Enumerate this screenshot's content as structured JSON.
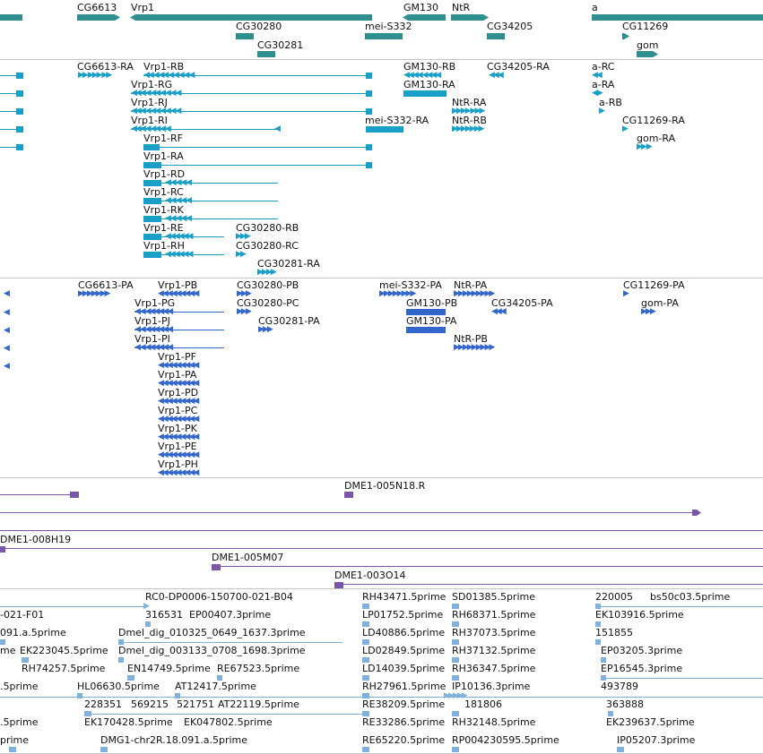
{
  "genes": [
    {
      "name": "CG6613"
    },
    {
      "name": "Vrp1"
    },
    {
      "name": "GM130"
    },
    {
      "name": "NtR"
    },
    {
      "name": "a"
    },
    {
      "name": "CG30280"
    },
    {
      "name": "mei-S332"
    },
    {
      "name": "CG34205"
    },
    {
      "name": "CG11269"
    },
    {
      "name": "CG30281"
    },
    {
      "name": "gom"
    }
  ],
  "transcripts": [
    "CG6613-RA",
    "Vrp1-RB",
    "GM130-RB",
    "CG34205-RA",
    "a-RC",
    "Vrp1-RG",
    "GM130-RA",
    "a-RA",
    "Vrp1-RJ",
    "NtR-RA",
    "a-RB",
    "Vrp1-RI",
    "mei-S332-RA",
    "NtR-RB",
    "CG11269-RA",
    "Vrp1-RF",
    "gom-RA",
    "Vrp1-RA",
    "Vrp1-RD",
    "Vrp1-RC",
    "Vrp1-RK",
    "Vrp1-RE",
    "CG30280-RB",
    "Vrp1-RH",
    "CG30280-RC",
    "CG30281-RA"
  ],
  "peptides": [
    "CG6613-PA",
    "Vrp1-PB",
    "CG30280-PB",
    "mei-S332-PA",
    "NtR-PA",
    "CG11269-PA",
    "Vrp1-PG",
    "CG30280-PC",
    "GM130-PB",
    "CG34205-PA",
    "gom-PA",
    "Vrp1-PJ",
    "CG30281-PA",
    "GM130-PA",
    "Vrp1-PI",
    "NtR-PB",
    "Vrp1-PF",
    "Vrp1-PA",
    "Vrp1-PD",
    "Vrp1-PC",
    "Vrp1-PK",
    "Vrp1-PE",
    "Vrp1-PH"
  ],
  "clones": [
    "DME1-005N18.R",
    "DME1-008H19",
    "DME1-005M07",
    "DME1-003O14"
  ],
  "ests": [
    "RC0-DP0006-150700-021-B04",
    "RH43471.5prime",
    "SD01385.5prime",
    "220005",
    "bs50c03.5prime",
    "-021-F01",
    "316531",
    "EP00407.3prime",
    "LP01752.5prime",
    "RH68371.5prime",
    "EK103916.5prime",
    "091.a.5prime",
    "Dmel_dig_010325_0649_1637.3prime",
    "LD40886.5prime",
    "RH37073.5prime",
    "151855",
    "me",
    "EK223045.5prime",
    "Dmel_dig_003133_0708_1698.3prime",
    "LD02849.5prime",
    "RH37132.5prime",
    "EP03205.3prime",
    "RH74257.5prime",
    "EN14749.5prime",
    "RE67523.5prime",
    "LD14039.5prime",
    "RH36347.5prime",
    "EP16545.3prime",
    ".5prime",
    "HL06630.5prime",
    "AT12417.5prime",
    "RH27961.5prime",
    "IP10136.3prime",
    "493789",
    "228351",
    "569215",
    "521751",
    "AT22119.5prime",
    "RE38209.5prime",
    "181806",
    "363888",
    ".5prime",
    "EK170428.5prime",
    "EK047802.5prime",
    "RE33286.5prime",
    "RH32148.5prime",
    "EK239637.5prime",
    "prime",
    "DMG1-chr2R.18.091.a.5prime",
    "RE65220.5prime",
    "RP004230595.5prime",
    "IP05207.3prime"
  ]
}
